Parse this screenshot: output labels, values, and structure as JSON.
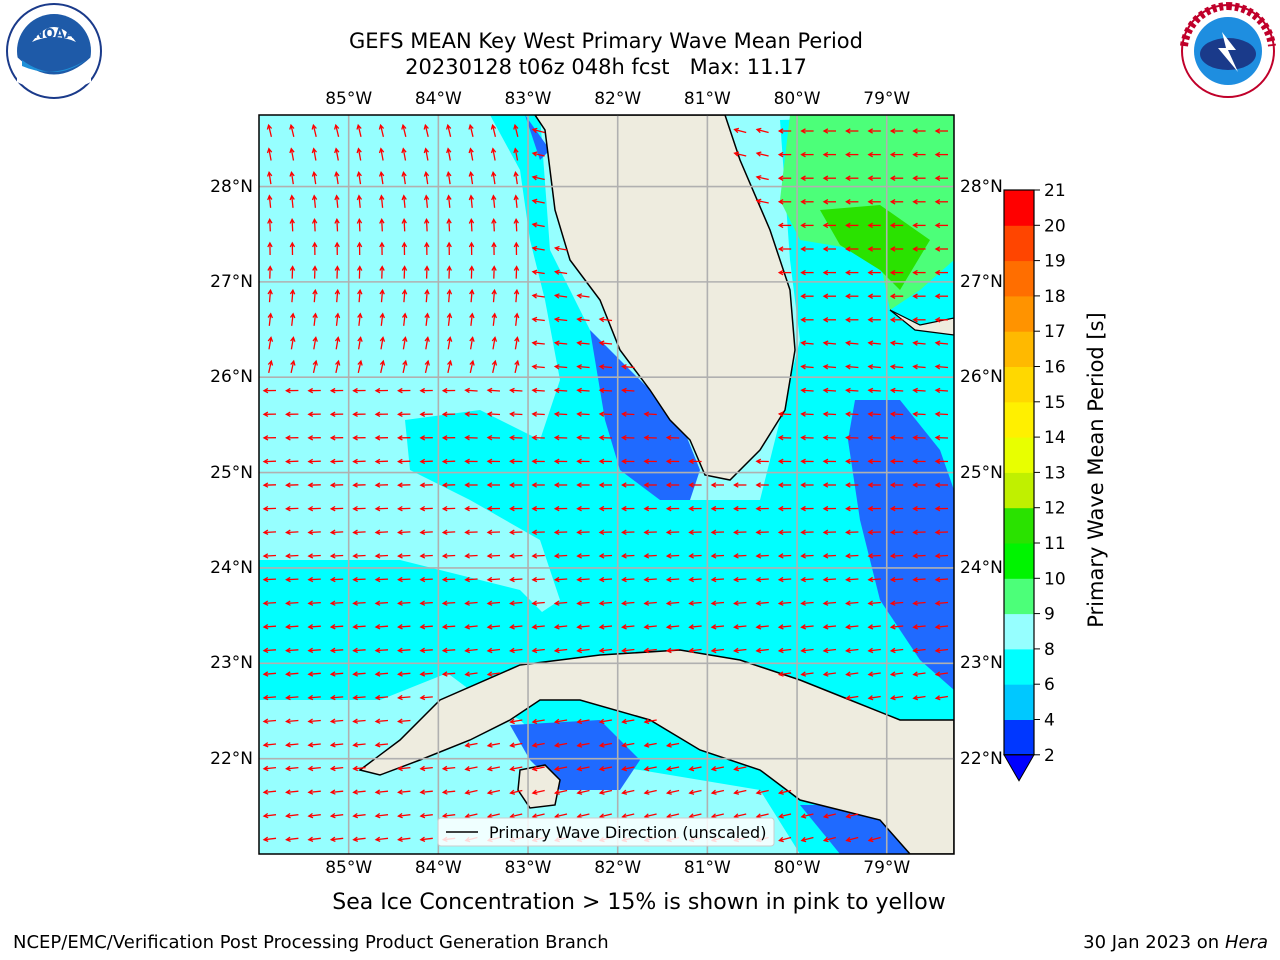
{
  "title": {
    "line1": "GEFS MEAN Key West Primary Wave Mean Period",
    "line2": "20230128 t06z 048h fcst   Max: 11.17"
  },
  "logos": {
    "left": {
      "name": "noaa-logo",
      "text": "NOAA"
    },
    "right": {
      "name": "nws-logo",
      "text": "NATIONAL WEATHER SERVICE"
    }
  },
  "map": {
    "lon_labels": [
      "85°W",
      "84°W",
      "83°W",
      "82°W",
      "81°W",
      "80°W",
      "79°W"
    ],
    "lat_labels": [
      "28°N",
      "27°N",
      "26°N",
      "25°N",
      "24°N",
      "23°N",
      "22°N"
    ],
    "extent": {
      "lon": [
        -86.0,
        -78.25
      ],
      "lat": [
        21.0,
        28.75
      ]
    },
    "legend_label": "Primary Wave Direction (unscaled)",
    "arrow_color": "#ff0000",
    "land_color": "#eeecdf"
  },
  "colorbar": {
    "label": "Primary Wave Mean Period [s]",
    "ticks": [
      "2",
      "4",
      "6",
      "8",
      "9",
      "10",
      "11",
      "12",
      "13",
      "14",
      "15",
      "16",
      "17",
      "18",
      "19",
      "20",
      "21"
    ],
    "colors": [
      "#0037ff",
      "#00c8ff",
      "#00ffff",
      "#96ffff",
      "#4cff79",
      "#00f400",
      "#2ae200",
      "#c0f000",
      "#e8ff00",
      "#fff000",
      "#ffd800",
      "#ffb900",
      "#ff9300",
      "#ff6e00",
      "#ff4500",
      "#ff0000"
    ],
    "under_color": "#0000ff"
  },
  "caption": "Sea Ice Concentration > 15% is shown in pink to yellow",
  "footer": {
    "left": "NCEP/EMC/Verification Post Processing Product Generation Branch",
    "right_date": "30 Jan 2023 on ",
    "right_host": "Hera"
  }
}
